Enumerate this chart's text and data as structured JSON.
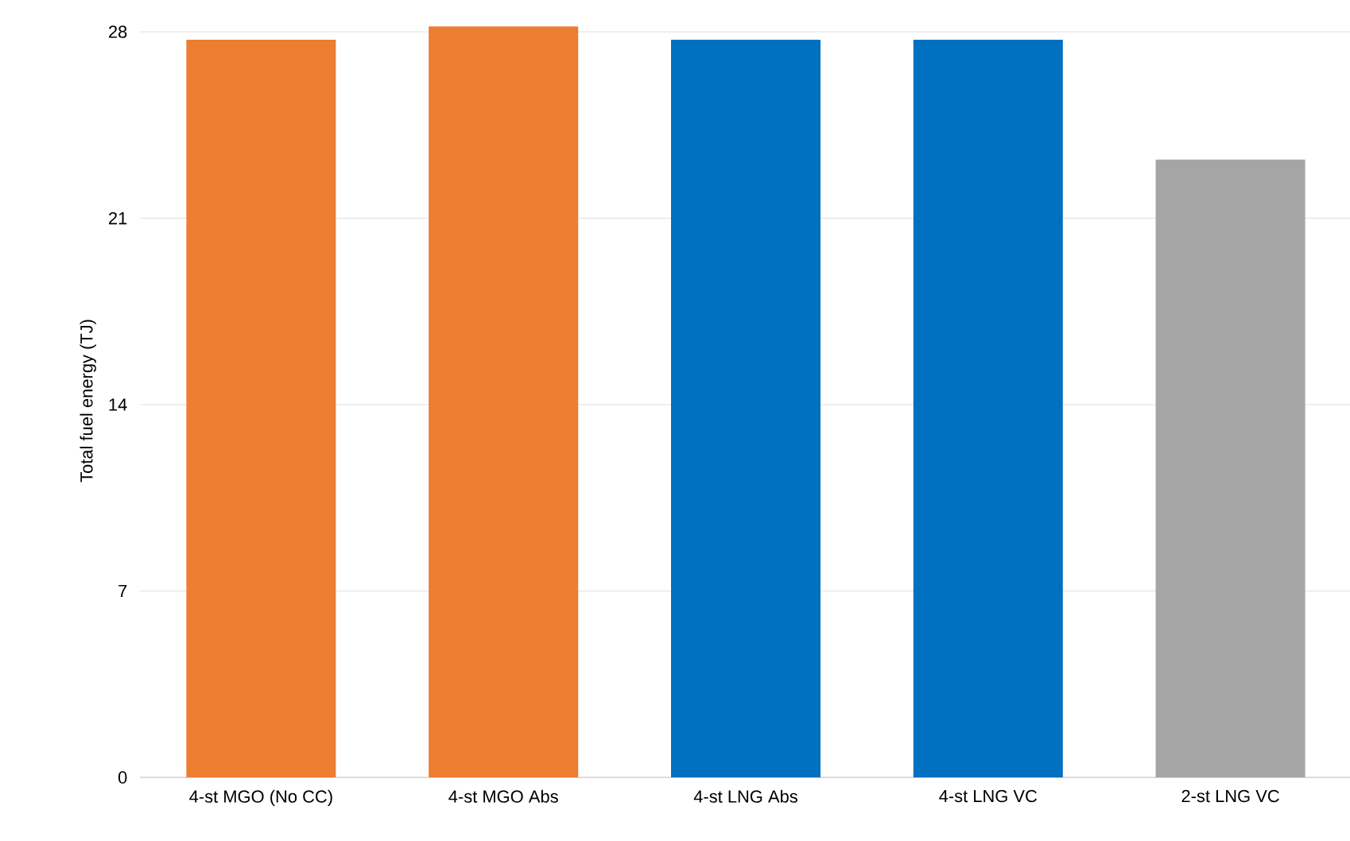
{
  "chart_data": {
    "type": "bar",
    "ylabel": "Total fuel energy (TJ)",
    "categories": [
      "4-st MGO (No CC)",
      "4-st MGO Abs",
      "4-st LNG Abs",
      "4-st LNG VC",
      "2-st LNG VC"
    ],
    "values": [
      27.7,
      28.2,
      27.7,
      27.7,
      23.2
    ],
    "colors": [
      "#ed7d31",
      "#ed7d31",
      "#0070c0",
      "#0070c0",
      "#a5a5a5"
    ],
    "ylim": [
      0,
      28.3
    ],
    "yticks": [
      0,
      7,
      14,
      21,
      28
    ],
    "grid": "y"
  }
}
